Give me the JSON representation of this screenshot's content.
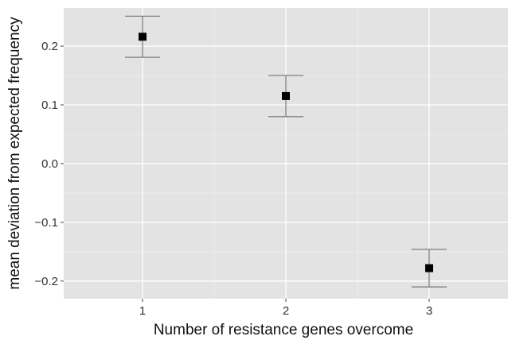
{
  "chart_data": {
    "type": "scatter",
    "title": "",
    "xlabel": "Number of resistance genes overcome",
    "ylabel": "mean deviation from expected frequency",
    "x_ticks": [
      "1",
      "2",
      "3"
    ],
    "y_ticks": [
      "-0.2",
      "-0.1",
      "0.0",
      "0.1",
      "0.2"
    ],
    "y_tick_labels": [
      "−0.2",
      "−0.1",
      "0.0",
      "0.1",
      "0.2"
    ],
    "xlim": [
      0.45,
      3.55
    ],
    "ylim": [
      -0.23,
      0.265
    ],
    "grid": true,
    "points": [
      {
        "x": 1,
        "y": 0.216,
        "ymin": 0.181,
        "ymax": 0.251
      },
      {
        "x": 2,
        "y": 0.115,
        "ymin": 0.08,
        "ymax": 0.15
      },
      {
        "x": 3,
        "y": -0.178,
        "ymin": -0.21,
        "ymax": -0.146
      }
    ],
    "colors": {
      "panel": "#e3e3e3",
      "grid_major": "#ffffff",
      "grid_minor": "#eeeeee",
      "point": "#000000",
      "errorbar": "#7f7f7f"
    }
  }
}
